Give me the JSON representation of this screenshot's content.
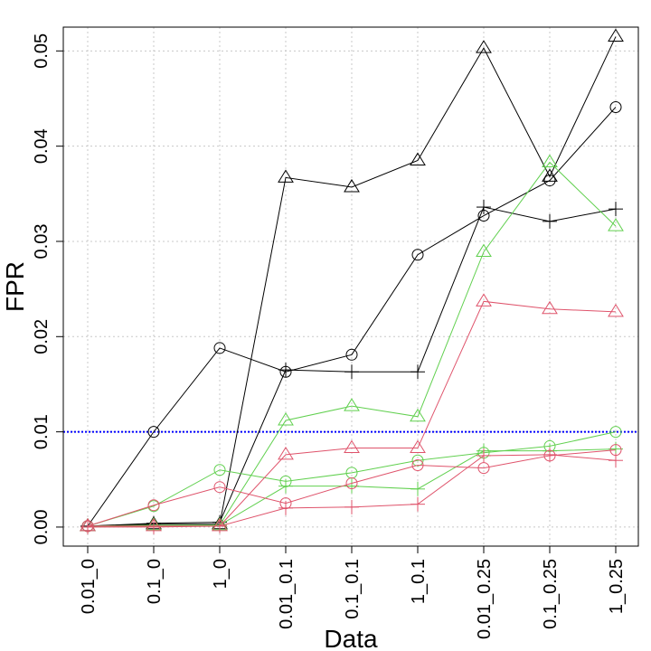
{
  "chart_data": {
    "type": "line",
    "title": "",
    "xlabel": "Data",
    "ylabel": "FPR",
    "categories": [
      "0.01_0",
      "0.1_0",
      "1_0",
      "0.01_0.1",
      "0.1_0.1",
      "1_0.1",
      "0.01_0.25",
      "0.1_0.25",
      "1_0.25"
    ],
    "ylim": [
      -0.002,
      0.0525
    ],
    "yticks": [
      0.0,
      0.01,
      0.02,
      0.03,
      0.04,
      0.05
    ],
    "ytick_labels": [
      "0.00",
      "0.01",
      "0.02",
      "0.03",
      "0.04",
      "0.05"
    ],
    "grid": true,
    "reference_line": {
      "y": 0.01,
      "color": "#0000ff",
      "style": "dotted"
    },
    "series": [
      {
        "name": "black-circle",
        "color": "#000000",
        "marker": "circle",
        "values": [
          0.0001,
          0.01,
          0.0188,
          0.0163,
          0.0181,
          0.0286,
          0.0327,
          0.0364,
          0.0441
        ]
      },
      {
        "name": "black-triangle",
        "color": "#000000",
        "marker": "triangle",
        "values": [
          0.0001,
          0.0003,
          0.0003,
          0.0367,
          0.0357,
          0.0385,
          0.0503,
          0.0368,
          0.0515
        ]
      },
      {
        "name": "black-plus",
        "color": "#000000",
        "marker": "plus",
        "values": [
          0.0001,
          0.0004,
          0.0005,
          0.0165,
          0.0163,
          0.0163,
          0.0336,
          0.0321,
          0.0334
        ]
      },
      {
        "name": "green-circle",
        "color": "#61d04f",
        "marker": "circle",
        "values": [
          0.0001,
          0.0022,
          0.006,
          0.0048,
          0.0057,
          0.007,
          0.0078,
          0.0085,
          0.01
        ]
      },
      {
        "name": "green-triangle",
        "color": "#61d04f",
        "marker": "triangle",
        "values": [
          0.0001,
          0.0002,
          0.0002,
          0.0112,
          0.0127,
          0.0116,
          0.0289,
          0.0383,
          0.0316
        ]
      },
      {
        "name": "green-plus",
        "color": "#61d04f",
        "marker": "plus",
        "values": [
          0.0,
          0.0001,
          0.0002,
          0.0043,
          0.0043,
          0.004,
          0.008,
          0.008,
          0.0082
        ]
      },
      {
        "name": "red-circle",
        "color": "#df536b",
        "marker": "circle",
        "values": [
          0.0001,
          0.0023,
          0.0042,
          0.0025,
          0.0046,
          0.0065,
          0.0062,
          0.0075,
          0.0081
        ]
      },
      {
        "name": "red-triangle",
        "color": "#df536b",
        "marker": "triangle",
        "values": [
          0.0001,
          0.0001,
          0.0001,
          0.0076,
          0.0083,
          0.0083,
          0.0237,
          0.0229,
          0.0226
        ]
      },
      {
        "name": "red-plus",
        "color": "#df536b",
        "marker": "plus",
        "values": [
          0.0,
          0.0,
          0.0001,
          0.002,
          0.0021,
          0.0024,
          0.0075,
          0.0076,
          0.007
        ]
      }
    ]
  }
}
